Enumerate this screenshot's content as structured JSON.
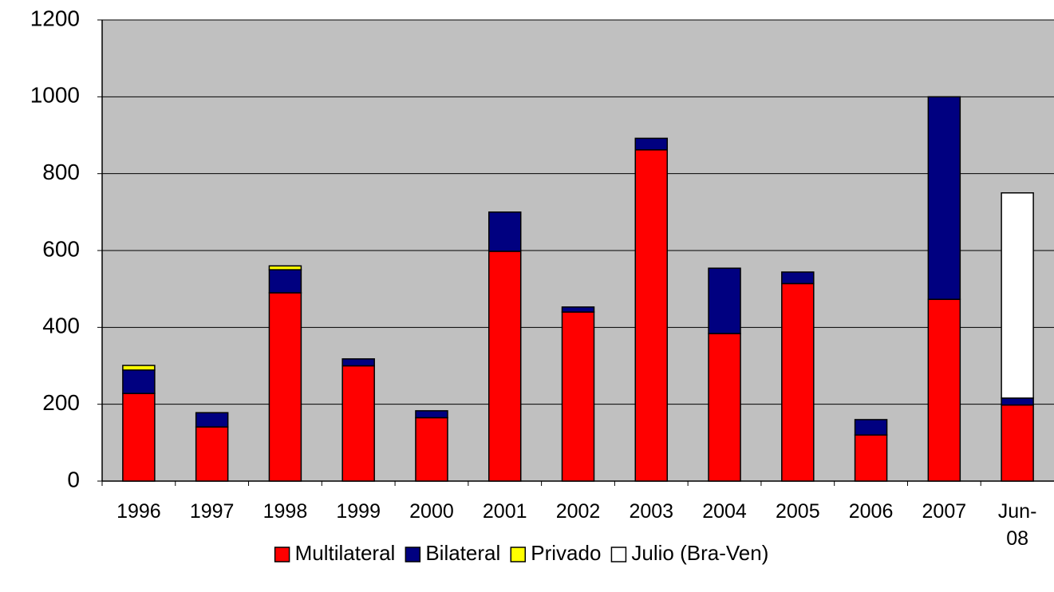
{
  "chart_data": {
    "type": "stacked-bar",
    "categories": [
      "1996",
      "1997",
      "1998",
      "1999",
      "2000",
      "2001",
      "2002",
      "2003",
      "2004",
      "2005",
      "2006",
      "2007",
      "Jun-08"
    ],
    "series": [
      {
        "name": "Multilateral",
        "color": "#ff0000",
        "values": [
          228,
          141,
          490,
          300,
          165,
          598,
          440,
          862,
          384,
          514,
          120,
          473,
          198
        ]
      },
      {
        "name": "Bilateral",
        "color": "#000080",
        "values": [
          61,
          37,
          60,
          18,
          18,
          102,
          13,
          30,
          170,
          30,
          40,
          527,
          18
        ]
      },
      {
        "name": "Privado",
        "color": "#ffff00",
        "values": [
          12,
          null,
          10,
          null,
          null,
          null,
          null,
          null,
          null,
          null,
          null,
          null,
          null
        ]
      },
      {
        "name": "Julio (Bra-Ven)",
        "color": "#ffffff",
        "values": [
          null,
          null,
          null,
          null,
          null,
          null,
          null,
          null,
          null,
          null,
          null,
          null,
          534
        ]
      }
    ],
    "ylim": [
      0,
      1200
    ],
    "yticks": [
      0,
      200,
      400,
      600,
      800,
      1000,
      1200
    ],
    "grid": true,
    "legend": "bottom"
  }
}
